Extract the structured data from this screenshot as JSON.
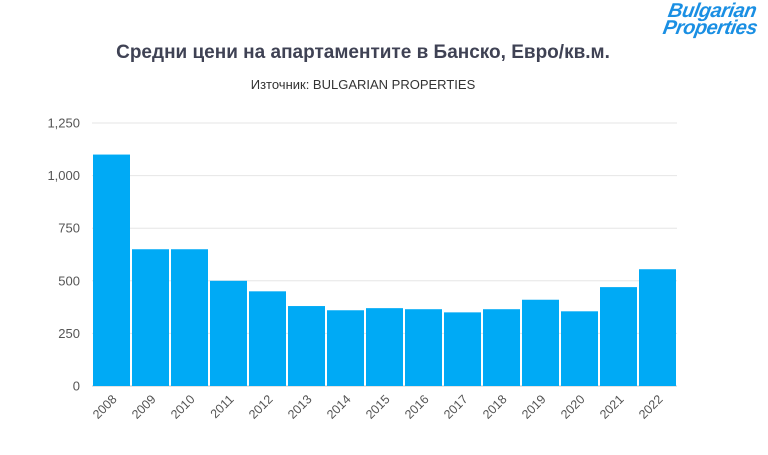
{
  "logo": {
    "line1": "Bulgarian",
    "line2": "Properties",
    "color": "#1a8fe3"
  },
  "chart_data": {
    "type": "bar",
    "title": "Средни цени на апартаментите в Банско, Евро/кв.м.",
    "subtitle": "Източник: BULGARIAN PROPERTIES",
    "categories": [
      "2008",
      "2009",
      "2010",
      "2011",
      "2012",
      "2013",
      "2014",
      "2015",
      "2016",
      "2017",
      "2018",
      "2019",
      "2020",
      "2021",
      "2022"
    ],
    "values": [
      1100,
      650,
      650,
      500,
      450,
      380,
      360,
      370,
      365,
      350,
      365,
      410,
      355,
      470,
      555
    ],
    "ylim": [
      0,
      1250
    ],
    "yticks": [
      0,
      250,
      500,
      750,
      1000,
      1250
    ],
    "ytick_labels": [
      "0",
      "250",
      "500",
      "750",
      "1,000",
      "1,250"
    ],
    "xlabel": "",
    "ylabel": "",
    "grid": true,
    "bar_color": "#00aaf5"
  }
}
